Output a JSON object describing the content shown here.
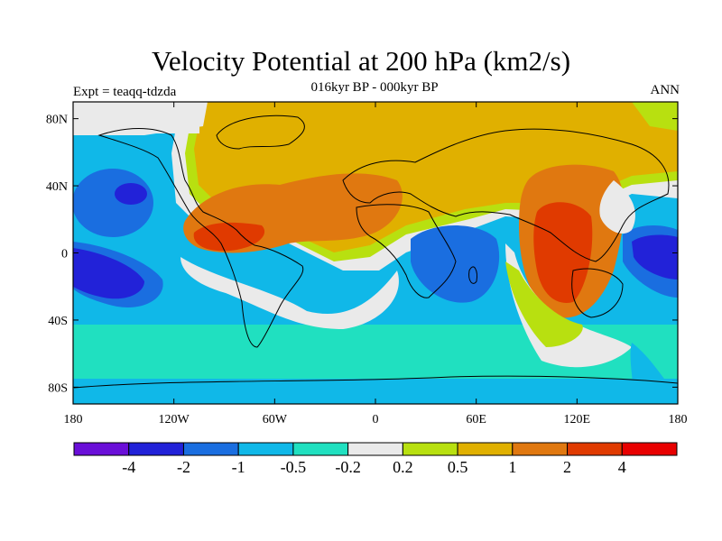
{
  "title": "Velocity Potential at 200 hPa (km2/s)",
  "subtitle": "016kyr BP - 000kyr BP",
  "left_label": "Expt = teaqq-tdzda",
  "right_label": "ANN",
  "lat_ticks": [
    "80N",
    "40N",
    "0",
    "40S",
    "80S"
  ],
  "lon_ticks": [
    "180",
    "120W",
    "60W",
    "0",
    "60E",
    "120E",
    "180"
  ],
  "colorbar": {
    "colors": [
      "#6a0fd8",
      "#2222d8",
      "#1a6ee0",
      "#10b8e8",
      "#20e0c0",
      "#eaeaea",
      "#b8e010",
      "#e0b000",
      "#e07810",
      "#e03a00",
      "#e80000"
    ],
    "labels": [
      "-4",
      "-2",
      "-1",
      "-0.5",
      "-0.2",
      "0.2",
      "0.5",
      "1",
      "2",
      "4"
    ]
  }
}
